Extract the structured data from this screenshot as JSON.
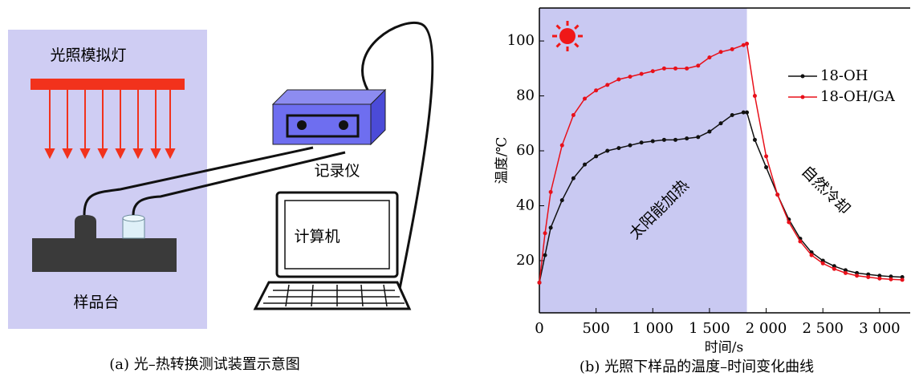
{
  "diagram": {
    "lamp_label": "光照模拟灯",
    "recorder_label": "记录仪",
    "computer_label": "计算机",
    "stage_label": "样品台",
    "caption": "(a) 光–热转换测试装置示意图"
  },
  "chart_data": {
    "type": "line",
    "caption": "(b) 光照下样品的温度–时间变化曲线",
    "xlabel": "时间/s",
    "ylabel": "温度/℃",
    "annotations": [
      "太阳能加热",
      "自然冷却"
    ],
    "shaded_region": {
      "xlim": [
        0,
        1830
      ],
      "color": "#c9c9f2"
    },
    "xlim": [
      0,
      3270
    ],
    "ylim": [
      1,
      112
    ],
    "xticks": [
      0,
      500,
      {
        "value": 1000,
        "label": "1 000"
      },
      {
        "value": 1500,
        "label": "1 500"
      },
      {
        "value": 2000,
        "label": "2 000"
      },
      {
        "value": 2500,
        "label": "2 500"
      },
      {
        "value": 3000,
        "label": "3 000"
      }
    ],
    "yticks": [
      20,
      40,
      60,
      80,
      100
    ],
    "x": [
      0,
      50,
      100,
      200,
      300,
      400,
      500,
      600,
      700,
      800,
      900,
      1000,
      1100,
      1200,
      1300,
      1400,
      1500,
      1600,
      1700,
      1800,
      1830,
      1900,
      2000,
      2100,
      2200,
      2300,
      2400,
      2500,
      2600,
      2700,
      2800,
      2900,
      3000,
      3100,
      3200
    ],
    "series": [
      {
        "name": "18-OH",
        "color": "#111111",
        "values": [
          12,
          22,
          32,
          42,
          50,
          55,
          58,
          60,
          61,
          62,
          63,
          63.5,
          64,
          64,
          64.5,
          65,
          67,
          70,
          73,
          74,
          74,
          64,
          54,
          44,
          35,
          28,
          23,
          20,
          18,
          16.5,
          15.5,
          15,
          14.5,
          14.2,
          14
        ]
      },
      {
        "name": "18-OH/GA",
        "color": "#e8101a",
        "values": [
          12,
          30,
          45,
          62,
          73,
          79,
          82,
          84,
          86,
          87,
          88,
          89,
          90,
          90,
          90,
          91,
          94,
          96,
          97,
          98.5,
          99,
          80,
          58,
          44,
          34,
          27,
          22,
          19,
          17,
          15.5,
          14.5,
          14,
          13.5,
          13.2,
          13
        ]
      }
    ]
  }
}
